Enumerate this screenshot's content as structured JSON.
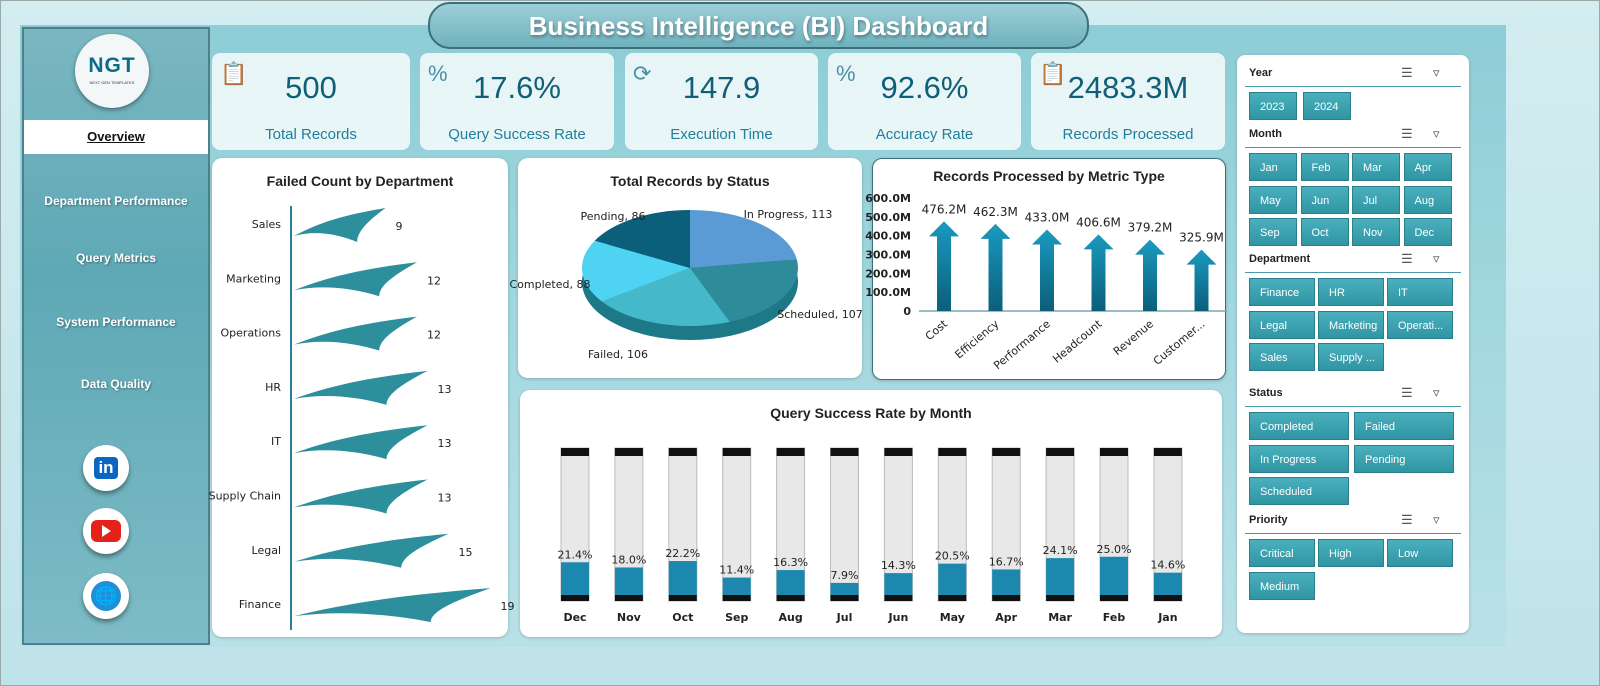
{
  "title": "Business Intelligence (BI) Dashboard",
  "logo": {
    "text": "NGT",
    "subtitle": "NEXT GEN TEMPLATES"
  },
  "nav": [
    {
      "label": "Overview",
      "active": true
    },
    {
      "label": "Department Performance"
    },
    {
      "label": "Query Metrics"
    },
    {
      "label": "System Performance"
    },
    {
      "label": "Data Quality"
    }
  ],
  "social": [
    {
      "icon": "linkedin-icon",
      "label": "in"
    },
    {
      "icon": "youtube-icon"
    },
    {
      "icon": "globe-icon"
    }
  ],
  "kpis": [
    {
      "icon": "clipboard-icon",
      "value": "500",
      "label": "Total Records"
    },
    {
      "icon": "percent-icon",
      "value": "17.6%",
      "label": "Query Success Rate"
    },
    {
      "icon": "refresh-icon",
      "value": "147.9",
      "label": "Execution Time"
    },
    {
      "icon": "percent-icon",
      "value": "92.6%",
      "label": "Accuracy Rate"
    },
    {
      "icon": "checklist-icon",
      "value": "2483.3M",
      "label": "Records Processed"
    }
  ],
  "colors": {
    "accent": "#1f7f9c",
    "bar": "#2e8f9c",
    "arrow": "#1a87a8"
  },
  "chart_data": [
    {
      "type": "bar",
      "orientation": "horizontal",
      "title": "Failed Count by Department",
      "categories": [
        "Sales",
        "Marketing",
        "Operations",
        "HR",
        "IT",
        "Supply Chain",
        "Legal",
        "Finance"
      ],
      "values": [
        9,
        12,
        12,
        13,
        13,
        13,
        15,
        19
      ]
    },
    {
      "type": "pie",
      "style": "3d",
      "title": "Total Records by Status",
      "categories": [
        "In Progress",
        "Scheduled",
        "Failed",
        "Completed",
        "Pending"
      ],
      "values": [
        113,
        107,
        106,
        88,
        86
      ],
      "colors": [
        "#5b9bd5",
        "#2e8b9a",
        "#45b9c9",
        "#4fd3f2",
        "#0b5f7a"
      ]
    },
    {
      "type": "bar",
      "title": "Records Processed by Metric Type",
      "categories": [
        "Cost",
        "Efficiency",
        "Performance",
        "Headcount",
        "Revenue",
        "Customer..."
      ],
      "values": [
        476.2,
        462.3,
        433.0,
        406.6,
        379.2,
        325.9
      ],
      "labels": [
        "476.2M",
        "462.3M",
        "433.0M",
        "406.6M",
        "379.2M",
        "325.9M"
      ],
      "ylim": [
        0,
        600
      ],
      "yticks": [
        "0",
        "100.0M",
        "200.0M",
        "300.0M",
        "400.0M",
        "500.0M",
        "600.0M"
      ]
    },
    {
      "type": "bar",
      "style": "cylinder",
      "title": "Query Success Rate by Month",
      "categories": [
        "Dec",
        "Nov",
        "Oct",
        "Sep",
        "Aug",
        "Jul",
        "Jun",
        "May",
        "Apr",
        "Mar",
        "Feb",
        "Jan"
      ],
      "values": [
        21.4,
        18.0,
        22.2,
        11.4,
        16.3,
        7.9,
        14.3,
        20.5,
        16.7,
        24.1,
        25.0,
        14.6
      ],
      "labels": [
        "21.4%",
        "18.0%",
        "22.2%",
        "11.4%",
        "16.3%",
        "7.9%",
        "14.3%",
        "20.5%",
        "16.7%",
        "24.1%",
        "25.0%",
        "14.6%"
      ],
      "ylim": [
        0,
        100
      ]
    }
  ],
  "slicers": [
    {
      "name": "Year",
      "items": [
        "2023",
        "2024"
      ]
    },
    {
      "name": "Month",
      "items": [
        "Jan",
        "Feb",
        "Mar",
        "Apr",
        "May",
        "Jun",
        "Jul",
        "Aug",
        "Sep",
        "Oct",
        "Nov",
        "Dec"
      ]
    },
    {
      "name": "Department",
      "items": [
        "Finance",
        "HR",
        "IT",
        "Legal",
        "Marketing",
        "Operati...",
        "Sales",
        "Supply ..."
      ]
    },
    {
      "name": "Status",
      "items": [
        "Completed",
        "Failed",
        "In Progress",
        "Pending",
        "Scheduled"
      ]
    },
    {
      "name": "Priority",
      "items": [
        "Critical",
        "High",
        "Low",
        "Medium"
      ]
    }
  ]
}
